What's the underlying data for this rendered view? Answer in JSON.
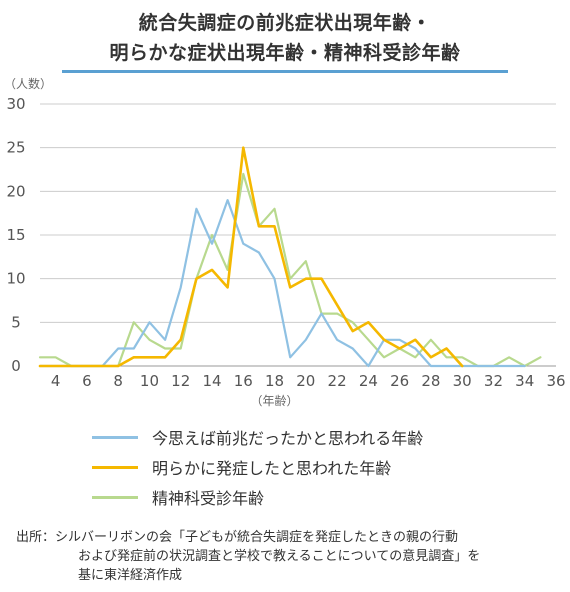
{
  "title_line1": "統合失調症の前兆症状出現年齢・",
  "title_line2": "明らかな症状出現年齢・精神科受診年齢",
  "source": {
    "label": "出所：",
    "line1": "シルバーリボンの会「子どもが統合失調症を発症したときの親の行動",
    "line2": "および発症前の状況調査と学校で教えることについての意見調査」を",
    "line3": "基に東洋経済作成"
  },
  "chart_data": {
    "type": "line",
    "ylabel": "（人数）",
    "xlabel": "（年齢）",
    "ylim": [
      0,
      30
    ],
    "xlim": [
      3,
      36
    ],
    "y_ticks": [
      0,
      5,
      10,
      15,
      20,
      25,
      30
    ],
    "x_ticks": [
      4,
      6,
      8,
      10,
      12,
      14,
      16,
      18,
      20,
      22,
      24,
      26,
      28,
      30,
      32,
      34,
      36
    ],
    "grid": "horizontal",
    "series": [
      {
        "name": "今思えば前兆だったかと思われる年齢",
        "color": "#8fc1e3",
        "x": [
          3,
          4,
          5,
          6,
          7,
          8,
          9,
          10,
          11,
          12,
          13,
          14,
          15,
          16,
          17,
          18,
          19,
          20,
          21,
          22,
          23,
          24,
          25,
          26,
          27,
          28,
          29,
          30,
          31,
          32,
          33,
          34
        ],
        "values": [
          0,
          0,
          0,
          0,
          0,
          2,
          2,
          5,
          3,
          9,
          18,
          14,
          19,
          14,
          13,
          10,
          1,
          3,
          6,
          3,
          2,
          0,
          3,
          3,
          2,
          0,
          0,
          0,
          0,
          0,
          0,
          0
        ]
      },
      {
        "name": "明らかに発症したと思われた年齢",
        "color": "#f5b800",
        "x": [
          3,
          4,
          5,
          6,
          7,
          8,
          9,
          10,
          11,
          12,
          13,
          14,
          15,
          16,
          17,
          18,
          19,
          20,
          21,
          22,
          23,
          24,
          25,
          26,
          27,
          28,
          29,
          30
        ],
        "values": [
          0,
          0,
          0,
          0,
          0,
          0,
          1,
          1,
          1,
          3,
          10,
          11,
          9,
          25,
          16,
          16,
          9,
          10,
          10,
          7,
          4,
          5,
          3,
          2,
          3,
          1,
          2,
          0
        ]
      },
      {
        "name": "精神科受診年齢",
        "color": "#b8d98e",
        "x": [
          3,
          4,
          5,
          6,
          7,
          8,
          9,
          10,
          11,
          12,
          13,
          14,
          15,
          16,
          17,
          18,
          19,
          20,
          21,
          22,
          23,
          24,
          25,
          26,
          27,
          28,
          29,
          30,
          31,
          32,
          33,
          34,
          35
        ],
        "values": [
          1,
          1,
          0,
          0,
          0,
          0,
          5,
          3,
          2,
          2,
          10,
          15,
          11,
          22,
          16,
          18,
          10,
          12,
          6,
          6,
          5,
          3,
          1,
          2,
          1,
          3,
          1,
          1,
          0,
          0,
          1,
          0,
          1
        ]
      }
    ]
  }
}
